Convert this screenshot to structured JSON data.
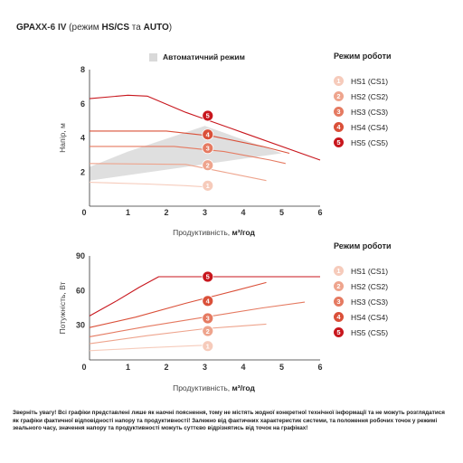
{
  "title": {
    "model": "GPA",
    "model_suffix": "XX-6 IV",
    "mode_open": " (режим ",
    "mode_bold": "HS/CS",
    "mode_and": " та ",
    "mode_bold2": "AUTO",
    "mode_close": ")"
  },
  "auto_mode_label": "Автоматичний режим",
  "note": "Зверніть увагу! Всі графіки представлені лише як наочні пояснення, тому не містять жодної конкретної технічної інформації та не можуть розглядатися як графіки фактичної відповідності напору та продуктивності! Залежно від фактичних характеристик системи, та положення робочих точок у режимі зеального часу, значення напору та продуктивності можуть суттєво відрізнятись від точок на графіках!",
  "legend_top": {
    "title": "Режим роботи",
    "items": [
      {
        "num": "1",
        "label": "HS1 (CS1)",
        "color": "#f6cbbb"
      },
      {
        "num": "2",
        "label": "HS2 (CS2)",
        "color": "#eea48d"
      },
      {
        "num": "3",
        "label": "HS3 (CS3)",
        "color": "#e57a61"
      },
      {
        "num": "4",
        "label": "HS4 (CS4)",
        "color": "#da5039"
      },
      {
        "num": "5",
        "label": "HS5 (CS5)",
        "color": "#c8161d"
      }
    ]
  },
  "legend_bottom": {
    "title": "Режим роботи",
    "items": [
      {
        "num": "1",
        "label": "HS1 (CS1)",
        "color": "#f6cbbb"
      },
      {
        "num": "2",
        "label": "HS2 (CS2)",
        "color": "#eea48d"
      },
      {
        "num": "3",
        "label": "HS3 (CS3)",
        "color": "#e57a61"
      },
      {
        "num": "4",
        "label": "HS4 (CS4)",
        "color": "#da5039"
      },
      {
        "num": "5",
        "label": "HS5 (CS5)",
        "color": "#c8161d"
      }
    ]
  },
  "chart_data": [
    {
      "type": "line",
      "title": "",
      "xlabel": "Продуктивність, ",
      "xlabel_unit": "м³/год",
      "ylabel": "Напір, м",
      "xlim": [
        0,
        6
      ],
      "ylim": [
        0,
        8
      ],
      "xticks": [
        "0",
        "1",
        "2",
        "3",
        "4",
        "5",
        "6"
      ],
      "yticks": [
        "2",
        "4",
        "6",
        "8"
      ],
      "grid": false,
      "shaded_region": {
        "label": "Автоматичний режим",
        "upper": [
          [
            0,
            2.3
          ],
          [
            1.0,
            3.2
          ],
          [
            3.0,
            4.7
          ],
          [
            5.0,
            3.1
          ]
        ],
        "lower": [
          [
            0,
            1.5
          ],
          [
            5.0,
            3.1
          ]
        ]
      },
      "series": [
        {
          "name": "1",
          "color": "#f6cbbb",
          "points": [
            [
              0,
              1.4
            ],
            [
              1.5,
              1.3
            ],
            [
              2.5,
              1.2
            ],
            [
              3.2,
              1.1
            ]
          ],
          "marker": [
            2.7,
            1.2
          ]
        },
        {
          "name": "2",
          "color": "#eea48d",
          "points": [
            [
              0,
              2.5
            ],
            [
              2.5,
              2.45
            ],
            [
              3.5,
              2.0
            ],
            [
              4.6,
              1.5
            ]
          ],
          "marker": [
            2.7,
            2.4
          ]
        },
        {
          "name": "3",
          "color": "#e57a61",
          "points": [
            [
              0,
              3.5
            ],
            [
              2.2,
              3.5
            ],
            [
              3.5,
              3.2
            ],
            [
              4.7,
              2.7
            ],
            [
              5.1,
              2.5
            ]
          ],
          "marker": [
            2.7,
            3.4
          ]
        },
        {
          "name": "4",
          "color": "#da5039",
          "points": [
            [
              0,
              4.4
            ],
            [
              2.0,
              4.4
            ],
            [
              3.2,
              4.1
            ],
            [
              4.5,
              3.5
            ],
            [
              5.2,
              3.1
            ]
          ],
          "marker": [
            2.7,
            4.2
          ]
        },
        {
          "name": "5",
          "color": "#c8161d",
          "points": [
            [
              0,
              6.3
            ],
            [
              1.0,
              6.5
            ],
            [
              1.5,
              6.45
            ],
            [
              2.5,
              5.5
            ],
            [
              4.0,
              4.3
            ],
            [
              6.0,
              2.7
            ]
          ],
          "marker": [
            2.7,
            5.3
          ]
        }
      ]
    },
    {
      "type": "line",
      "title": "",
      "xlabel": "Продуктивність, ",
      "xlabel_unit": "м³/год",
      "ylabel": "Потужність, Вт",
      "xlim": [
        0,
        6
      ],
      "ylim": [
        0,
        90
      ],
      "xticks": [
        "0",
        "1",
        "2",
        "3",
        "4",
        "5",
        "6"
      ],
      "yticks": [
        "30",
        "60",
        "90"
      ],
      "grid": false,
      "series": [
        {
          "name": "1",
          "color": "#f6cbbb",
          "points": [
            [
              0,
              8
            ],
            [
              1.5,
              10.5
            ],
            [
              2.5,
              12
            ],
            [
              3.2,
              13
            ]
          ],
          "marker": [
            2.7,
            12
          ]
        },
        {
          "name": "2",
          "color": "#eea48d",
          "points": [
            [
              0,
              14
            ],
            [
              1.5,
              21
            ],
            [
              3.0,
              27
            ],
            [
              4.6,
              31
            ]
          ],
          "marker": [
            2.7,
            25
          ]
        },
        {
          "name": "3",
          "color": "#e57a61",
          "points": [
            [
              0,
              20
            ],
            [
              1.5,
              29
            ],
            [
              3.0,
              37
            ],
            [
              4.5,
              45
            ],
            [
              5.6,
              50
            ]
          ],
          "marker": [
            2.7,
            36
          ]
        },
        {
          "name": "4",
          "color": "#da5039",
          "points": [
            [
              0,
              28
            ],
            [
              1.2,
              37
            ],
            [
              2.5,
              49
            ],
            [
              3.8,
              60
            ],
            [
              4.6,
              67
            ]
          ],
          "marker": [
            2.7,
            51
          ]
        },
        {
          "name": "5",
          "color": "#c8161d",
          "points": [
            [
              0,
              38
            ],
            [
              0.7,
              51
            ],
            [
              1.3,
              63
            ],
            [
              1.8,
              72
            ],
            [
              6.0,
              72
            ]
          ],
          "marker": [
            2.7,
            72
          ]
        }
      ]
    }
  ]
}
